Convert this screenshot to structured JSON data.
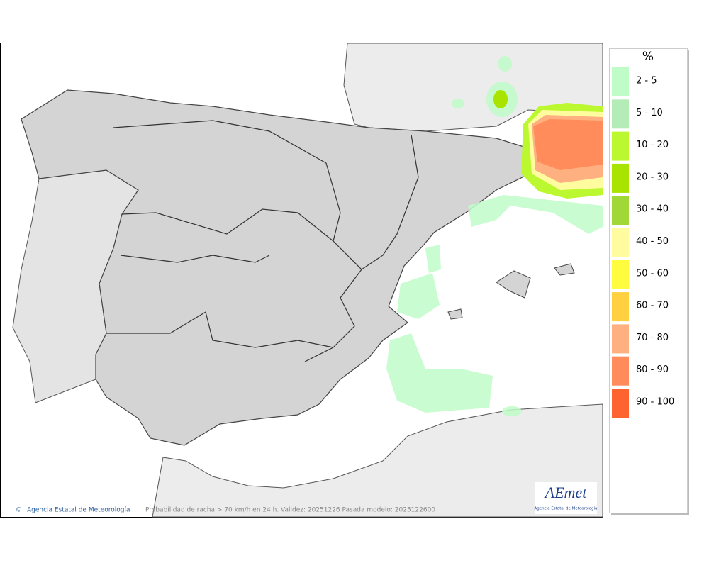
{
  "map": {
    "credit": "Agencia Estatal de Meteorología",
    "caption": "Probabilidad de racha > 70 km/h en 24 h. Validez: 20251226 Pasada modelo: 2025122600",
    "logo": "AEmet",
    "logo_subtitle": "Agencia Estatal de Meteorología"
  },
  "legend": {
    "title": "%",
    "items": [
      {
        "label": "2 - 5",
        "color": "#c0fcc8"
      },
      {
        "label": "5 - 10",
        "color": "#b4ecb8"
      },
      {
        "label": "10 - 20",
        "color": "#bcf830"
      },
      {
        "label": "20 - 30",
        "color": "#a8e400"
      },
      {
        "label": "30 - 40",
        "color": "#a0d838"
      },
      {
        "label": "40 - 50",
        "color": "#fffca0"
      },
      {
        "label": "50 - 60",
        "color": "#fffc40"
      },
      {
        "label": "60 - 70",
        "color": "#ffd040"
      },
      {
        "label": "70 - 80",
        "color": "#ffb080"
      },
      {
        "label": "80 - 90",
        "color": "#ff8c5a"
      },
      {
        "label": "90 - 100",
        "color": "#ff6430"
      }
    ]
  }
}
